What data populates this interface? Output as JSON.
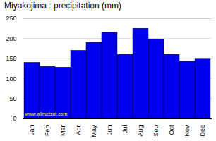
{
  "chart_data": {
    "type": "bar",
    "title": "Miyakojima : precipitation (mm)",
    "categories": [
      "Jan",
      "Feb",
      "Mar",
      "Apr",
      "May",
      "Jun",
      "Jul",
      "Aug",
      "Sep",
      "Oct",
      "Nov",
      "Dec"
    ],
    "values": [
      140,
      130,
      128,
      170,
      190,
      215,
      160,
      225,
      198,
      160,
      143,
      150
    ],
    "color": "#0000ee",
    "ylim": [
      0,
      250
    ],
    "yticks": [
      0,
      50,
      100,
      150,
      200,
      250
    ],
    "grid": true,
    "annotations": [
      "www.allmetsat.com"
    ]
  }
}
